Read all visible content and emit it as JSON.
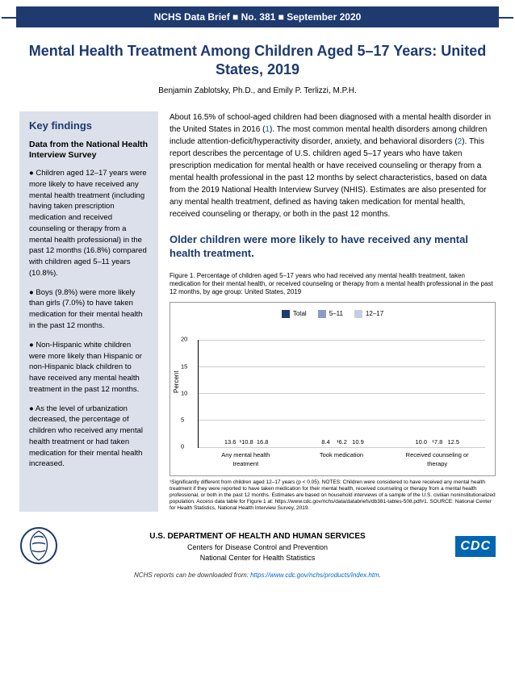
{
  "header": "NCHS Data Brief  ■  No. 381  ■  September 2020",
  "title": "Mental Health Treatment Among Children Aged 5–17 Years: United States, 2019",
  "authors": "Benjamin Zablotsky, Ph.D., and Emily P. Terlizzi, M.P.H.",
  "sidebar": {
    "heading": "Key findings",
    "subheading": "Data from the National Health Interview Survey",
    "b1": "●  Children aged 12–17 years were more likely to have received any mental health treatment (including having taken prescription medication and received counseling or therapy from a mental health professional) in the past 12 months (16.8%) compared with children aged 5–11 years (10.8%).",
    "b2": "●  Boys (9.8%) were more likely than girls (7.0%) to have taken medication for their mental health in the past 12 months.",
    "b3": "●  Non-Hispanic white children were more likely than Hispanic or non-Hispanic black children to have received any mental health treatment in the past 12 months.",
    "b4": "●  As the level of urbanization decreased, the percentage of children who received any mental health treatment or had taken medication for their mental health increased."
  },
  "intro": {
    "p1a": "About 16.5% of school-aged children had been diagnosed with a mental health disorder in the United States in 2016 (",
    "l1": "1",
    "p1b": "). The most common mental health disorders among children include attention-deficit/hyperactivity disorder, anxiety, and behavioral disorders (",
    "l2": "2",
    "p1c": "). This report describes the percentage of U.S. children aged 5–17 years who have taken prescription medication for mental health or have received counseling or therapy from a mental health professional in the past 12 months by select characteristics, based on data from the 2019 National Health Interview Survey (NHIS). Estimates are also presented for any mental health treatment, defined as having taken medication for mental health, received counseling or therapy, or both in the past 12 months."
  },
  "section_head": "Older children were more likely to have received any mental health treatment.",
  "figure": {
    "caption": "Figure 1. Percentage of children aged 5–17 years who had received any mental health treatment, taken medication for their mental health, or received counseling or therapy from a mental health professional in the past 12 months, by age group: United States, 2019",
    "type": "grouped-bar",
    "ylabel": "Percent",
    "ylim": [
      0,
      20
    ],
    "yticks": [
      0,
      5,
      10,
      15,
      20
    ],
    "grid_color": "#cccccc",
    "categories": [
      "Any mental health treatment",
      "Took medication",
      "Received counseling or therapy"
    ],
    "series": [
      {
        "name": "Total",
        "color": "#1e3a6e"
      },
      {
        "name": "5–11",
        "color": "#8a9bc4"
      },
      {
        "name": "12–17",
        "color": "#c5cde2"
      }
    ],
    "data": [
      [
        13.6,
        10.8,
        16.8
      ],
      [
        8.4,
        6.2,
        10.9
      ],
      [
        10.0,
        7.8,
        12.5
      ]
    ],
    "value_prefix": [
      "",
      "¹",
      "",
      "",
      "¹",
      "",
      "",
      "¹",
      ""
    ],
    "notes": "¹Significantly different from children aged 12–17 years (p < 0.05).\nNOTES: Children were considered to have received any mental health treatment if they were reported to have taken medication for their mental health, received counseling or therapy from a mental health professional, or both in the past 12 months. Estimates are based on household interviews of a sample of the U.S. civilian noninstitutionalized population. Access data table for Figure 1 at: https://www.cdc.gov/nchs/data/databriefs/db381-tables-508.pdf#1.\nSOURCE: National Center for Health Statistics, National Health Interview Survey, 2019."
  },
  "footer": {
    "l1": "U.S. DEPARTMENT OF HEALTH AND HUMAN SERVICES",
    "l2": "Centers for Disease Control and Prevention",
    "l3": "National Center for Health Statistics",
    "dl": "NCHS reports can be downloaded from: ",
    "dl_link": "https://www.cdc.gov/nchs/products/index.htm",
    "dl_suffix": "."
  }
}
